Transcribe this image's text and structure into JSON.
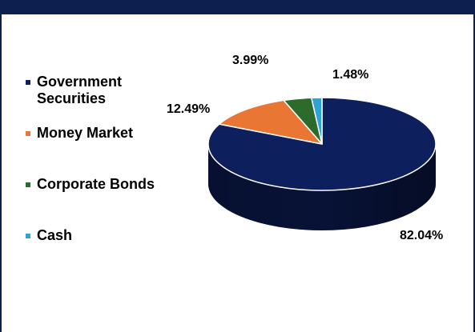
{
  "chart_data": {
    "type": "pie",
    "title": "",
    "categories": [
      "Government Securities",
      "Money Market",
      "Corporate Bonds",
      "Cash"
    ],
    "values": [
      82.04,
      12.49,
      3.99,
      1.48
    ],
    "data_labels": [
      "82.04%",
      "12.49%",
      "3.99%",
      "1.48%"
    ],
    "colors": [
      "#0d1f5c",
      "#ea7633",
      "#2d6b2d",
      "#2ea3d6"
    ],
    "legend_position": "left",
    "style": "3d"
  }
}
